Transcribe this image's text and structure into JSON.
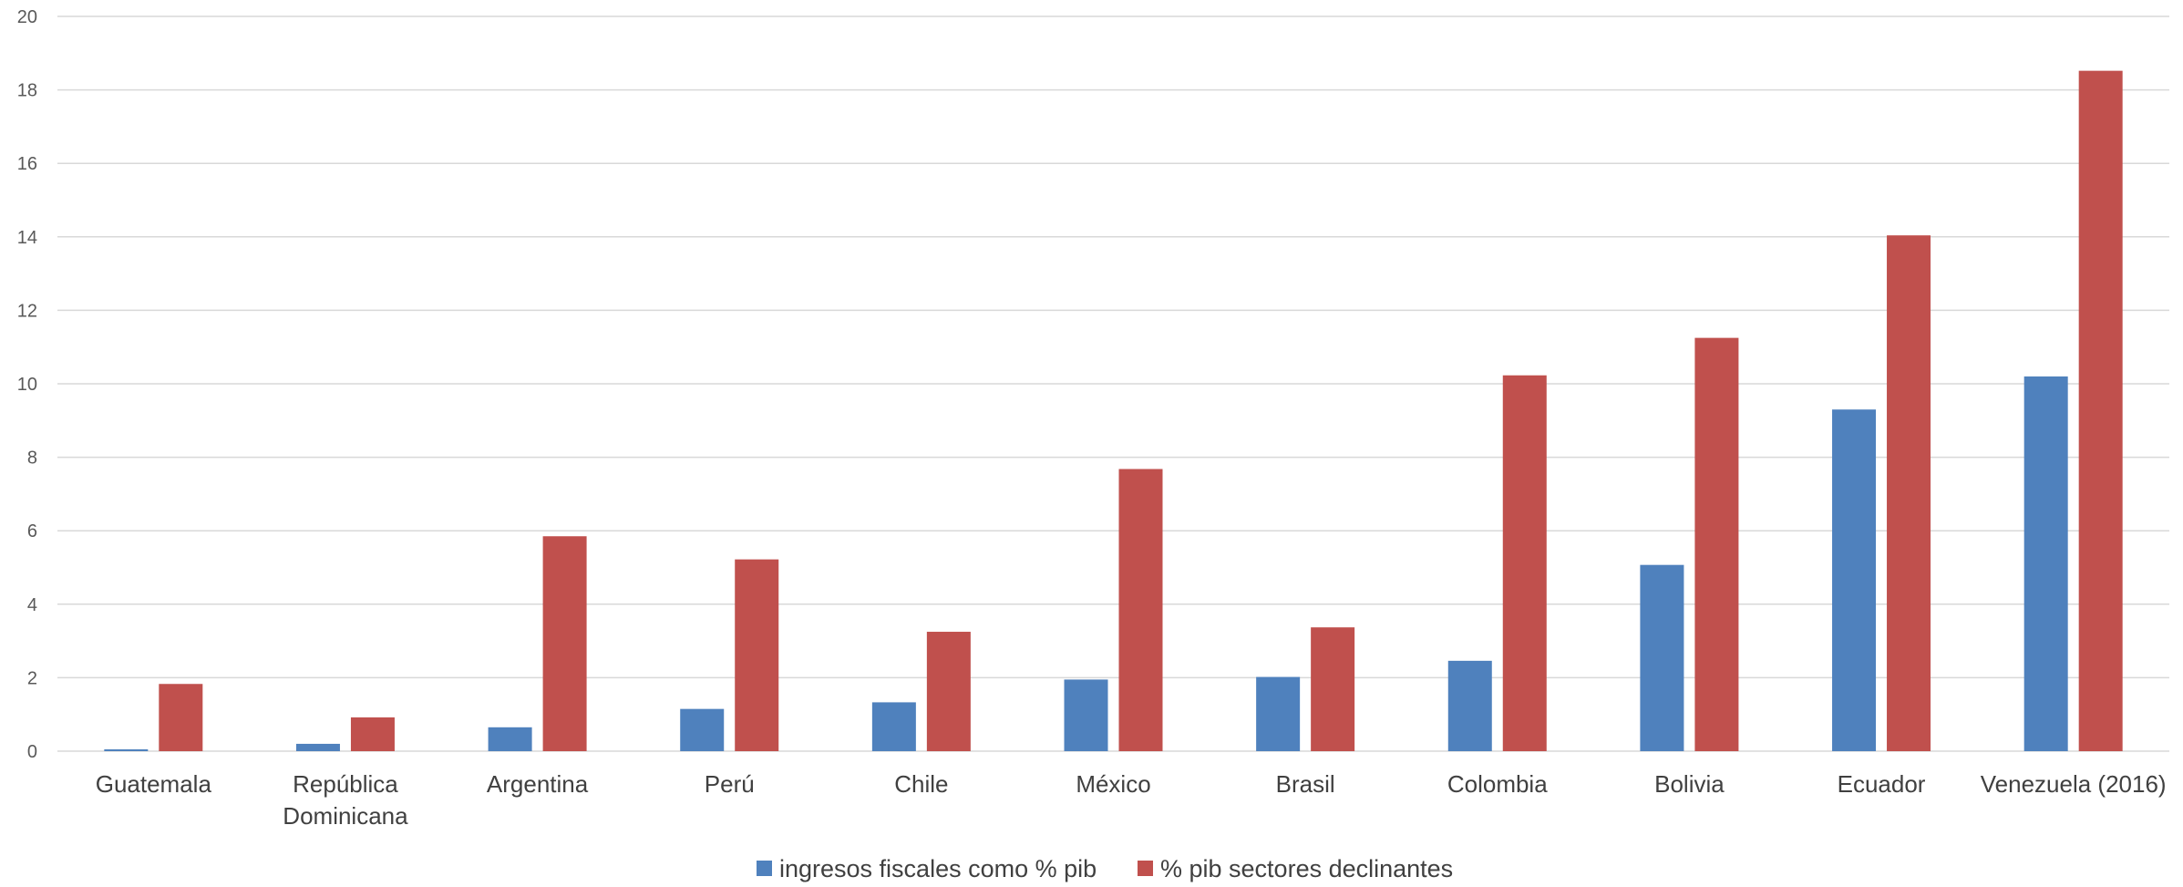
{
  "chart_data": {
    "type": "bar",
    "categories": [
      [
        "Guatemala"
      ],
      [
        "República",
        "Dominicana"
      ],
      [
        "Argentina"
      ],
      [
        "Perú"
      ],
      [
        "Chile"
      ],
      [
        "México"
      ],
      [
        "Brasil"
      ],
      [
        "Colombia"
      ],
      [
        "Bolivia"
      ],
      [
        "Ecuador"
      ],
      [
        "Venezuela (2016)"
      ]
    ],
    "series": [
      {
        "name": "ingresos fiscales como % pib",
        "color": "#4F81BD",
        "values": [
          0.05,
          0.2,
          0.65,
          1.15,
          1.33,
          1.95,
          2.02,
          2.46,
          5.07,
          9.3,
          10.2
        ]
      },
      {
        "name": "% pib sectores declinantes",
        "color": "#C0504D",
        "values": [
          1.83,
          0.92,
          5.85,
          5.22,
          3.25,
          7.68,
          3.37,
          10.23,
          11.25,
          14.04,
          18.52
        ]
      }
    ],
    "ylim": [
      0,
      20
    ],
    "yticks": [
      0,
      2,
      4,
      6,
      8,
      10,
      12,
      14,
      16,
      18,
      20
    ],
    "grid": true,
    "legend_position": "bottom",
    "gridline_color": "#D9D9D9"
  }
}
